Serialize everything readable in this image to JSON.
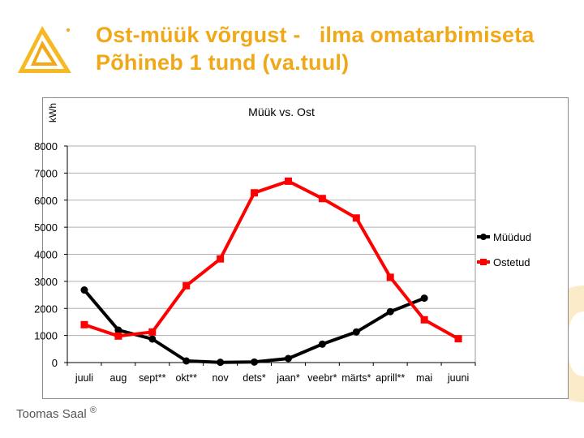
{
  "title_lines": [
    "Ost-müük võrgust -   ilma omatarbimiseta",
    "Põhineb 1 tund (va.tuul)"
  ],
  "footer": {
    "author": "Toomas Saal",
    "mark": "®"
  },
  "colors": {
    "title": "#f0a818",
    "accent_bg": "#fcebc8"
  },
  "chart_data": {
    "type": "line",
    "title": "Müük vs. Ost",
    "ylabel": "kWh",
    "xlabel": "",
    "ylim": [
      0,
      8000
    ],
    "yticks": [
      0,
      1000,
      2000,
      3000,
      4000,
      5000,
      6000,
      7000,
      8000
    ],
    "grid": true,
    "legend": "right",
    "categories": [
      "juuli",
      "aug",
      "sept**",
      "okt**",
      "nov",
      "dets*",
      "jaan*",
      "veebr*",
      "märts*",
      "aprill**",
      "mai",
      "juuni"
    ],
    "series": [
      {
        "name": "Müüdud",
        "color": "#000000",
        "marker": "circle",
        "values": [
          2680,
          1200,
          870,
          60,
          10,
          20,
          150,
          680,
          1130,
          1880,
          2380,
          null
        ]
      },
      {
        "name": "Ostetud",
        "color": "#ff0000",
        "marker": "square",
        "values": [
          1400,
          980,
          1130,
          2840,
          3830,
          6270,
          6700,
          6060,
          5340,
          3150,
          1580,
          880
        ]
      }
    ]
  }
}
